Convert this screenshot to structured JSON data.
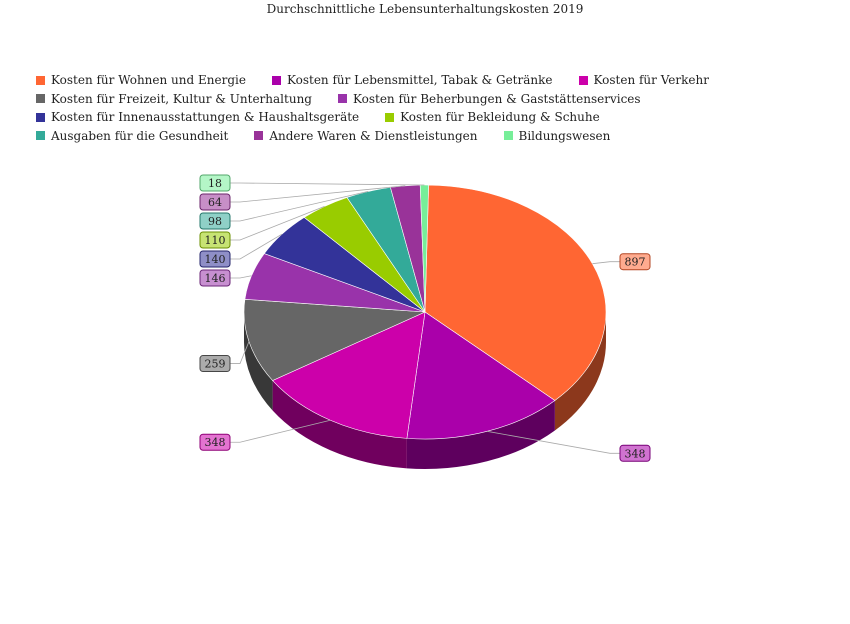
{
  "chart_data": {
    "type": "pie",
    "title": "Durchschnittliche Lebensunterhaltungskosten 2019",
    "legend_position": "top",
    "slices": [
      {
        "name": "Kosten für Wohnen und Energie",
        "value": 897,
        "color": "#ff6633"
      },
      {
        "name": "Kosten für Lebensmittel, Tabak & Getränke",
        "value": 348,
        "color": "#aa00aa"
      },
      {
        "name": "Kosten für Verkehr",
        "value": 348,
        "color": "#cc00aa"
      },
      {
        "name": "Kosten für Freizeit, Kultur & Unterhaltung",
        "value": 259,
        "color": "#666666"
      },
      {
        "name": "Kosten für Beherbungen & Gaststättenservices",
        "value": 146,
        "color": "#9933aa"
      },
      {
        "name": "Kosten für Innenausstattungen & Haushaltsgeräte",
        "value": 140,
        "color": "#333399"
      },
      {
        "name": "Kosten für Bekleidung & Schuhe",
        "value": 110,
        "color": "#99cc00"
      },
      {
        "name": "Ausgaben für die Gesundheit",
        "value": 98,
        "color": "#33aa99"
      },
      {
        "name": "Andere Waren & Dienstleistungen",
        "value": 64,
        "color": "#993399"
      },
      {
        "name": "Bildungswesen",
        "value": 18,
        "color": "#77ee99"
      }
    ]
  }
}
